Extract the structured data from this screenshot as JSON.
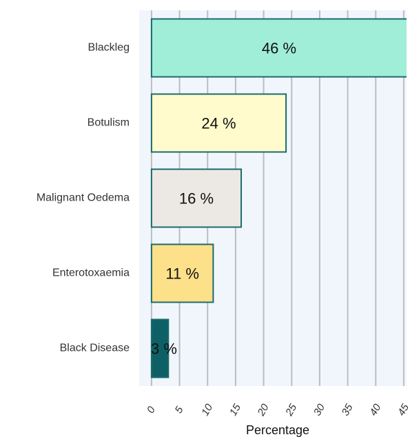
{
  "chart_data": {
    "type": "bar",
    "orientation": "horizontal",
    "categories": [
      "Blackleg",
      "Botulism",
      "Malignant Oedema",
      "Enterotoxaemia",
      "Black Disease"
    ],
    "values": [
      46,
      24,
      16,
      11,
      3
    ],
    "value_labels": [
      "46 %",
      "24 %",
      "16 %",
      "11 %",
      "3 %"
    ],
    "colors": [
      "#a0eed8",
      "#fffbcc",
      "#ece9e4",
      "#fde08a",
      "#0d6166"
    ],
    "xlabel": "Percentage",
    "xlim": [
      -2.2,
      45.5
    ],
    "xticks": [
      0,
      5,
      10,
      15,
      20,
      25,
      30,
      35,
      40,
      45
    ],
    "grid": true
  }
}
